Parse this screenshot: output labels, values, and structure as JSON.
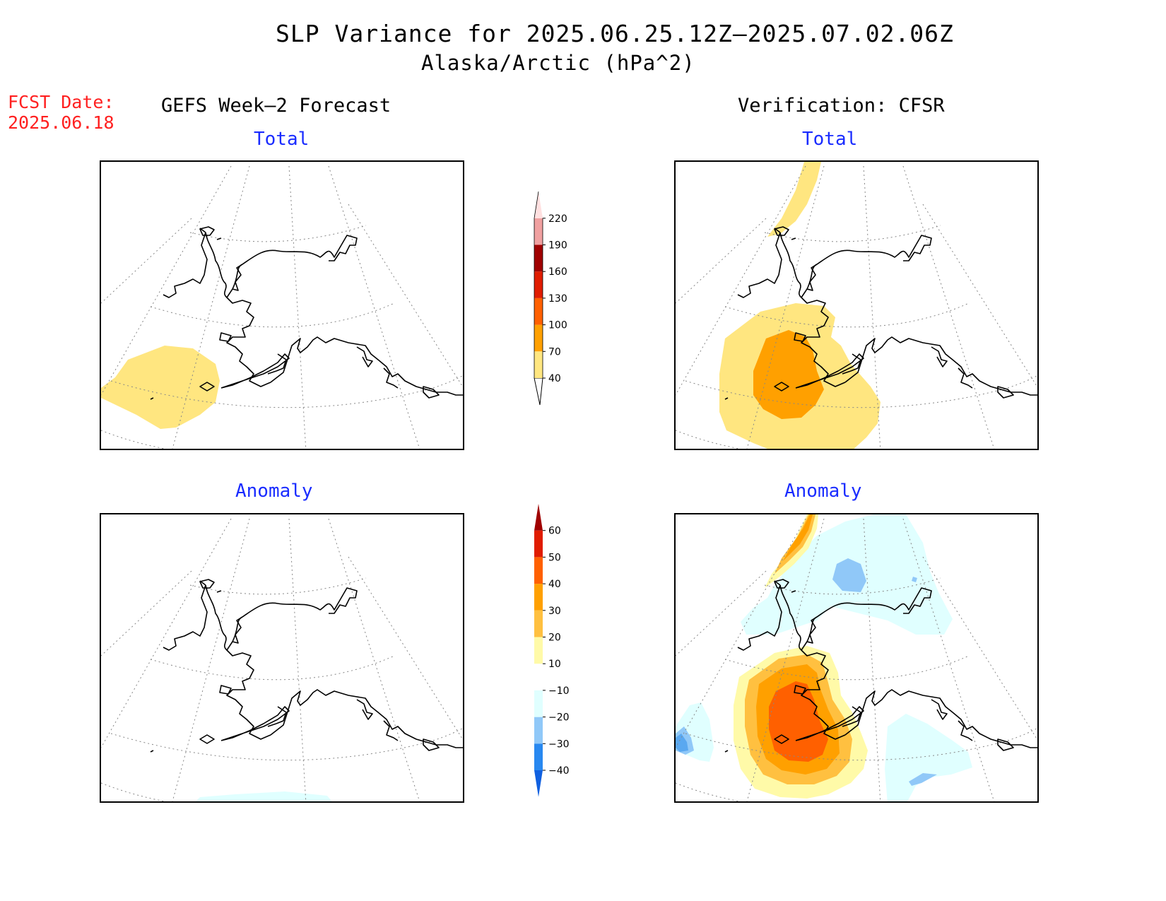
{
  "title": "SLP Variance for 2025.06.25.12Z–2025.07.02.06Z",
  "subtitle": "Alaska/Arctic (hPa^2)",
  "fcst_label": "FCST Date:",
  "fcst_date": "2025.06.18",
  "left_column_title": "GEFS Week–2 Forecast",
  "right_column_title": "Verification: CFSR",
  "panels": {
    "fcst_total": {
      "label": "Total"
    },
    "verif_total": {
      "label": "Total"
    },
    "fcst_anomaly": {
      "label": "Anomaly"
    },
    "verif_anomaly": {
      "label": "Anomaly"
    }
  },
  "colorbars": {
    "total": {
      "levels": [
        40,
        70,
        100,
        130,
        160,
        190,
        220
      ],
      "labels": [
        "40",
        "70",
        "100",
        "130",
        "160",
        "190",
        "220"
      ],
      "colors": [
        "#ffe680",
        "#ffa000",
        "#ff6000",
        "#e01c00",
        "#a00000",
        "#f0a0a0",
        "#ffe0e0"
      ]
    },
    "anomaly": {
      "levels": [
        -40,
        -30,
        -20,
        -10,
        10,
        20,
        30,
        40,
        50,
        60
      ],
      "labels": [
        "−40",
        "−30",
        "−20",
        "−10",
        "10",
        "20",
        "30",
        "40",
        "50",
        "60"
      ],
      "colors": [
        "#1060e0",
        "#2888f0",
        "#90c8f8",
        "#e0ffff",
        "#ffffff",
        "#fffaa8",
        "#ffc040",
        "#ffa000",
        "#ff6000",
        "#e01c00",
        "#a00000"
      ]
    }
  }
}
